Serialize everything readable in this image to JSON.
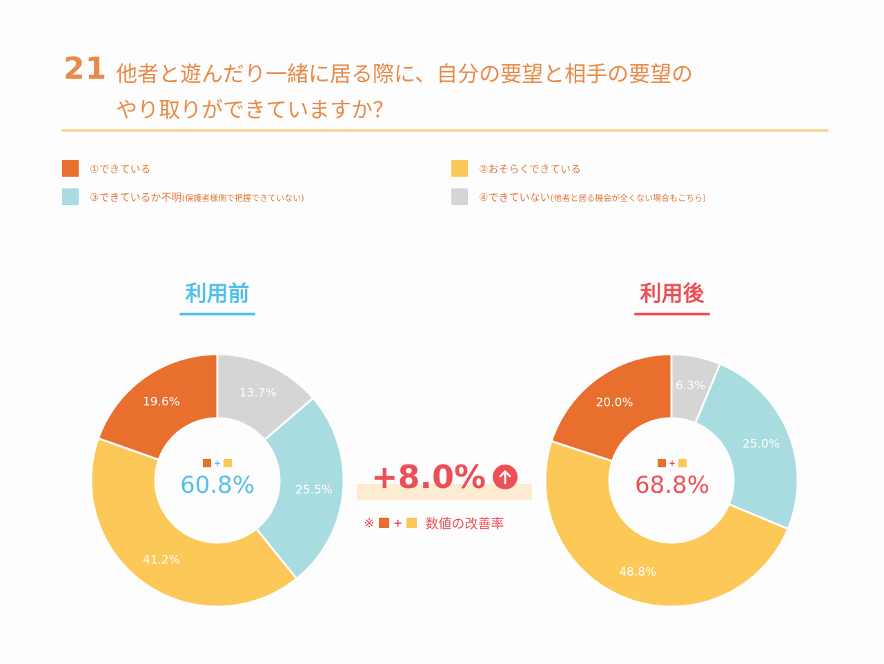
{
  "question": {
    "number": "21",
    "line1": "他者と遊んだり一緒に居る際に、自分の要望と相手の要望の",
    "line2": "やり取りができていますか？"
  },
  "legend": [
    {
      "label": "①できている",
      "note": "",
      "color": "#e96f2e"
    },
    {
      "label": "②おそらくできている",
      "note": "",
      "color": "#fcc857"
    },
    {
      "label": "③できているか不明",
      "note": "(保護者様側で把握できていない)",
      "color": "#a8dce0"
    },
    {
      "label": "④できていない",
      "note": "(他者と居る機会が全くない場合もこちら)",
      "color": "#d5d5d5"
    }
  ],
  "panels": {
    "before": {
      "title": "利用前",
      "color": "#52c0ea",
      "plus": "+",
      "center": "60.8%"
    },
    "after": {
      "title": "利用後",
      "color": "#ee4f56",
      "plus": "+",
      "center": "68.8%"
    }
  },
  "improvement": {
    "value": "+8.0%",
    "mark": "※",
    "plus": "+",
    "text": "数値の改善率"
  },
  "chart_data": [
    {
      "type": "pie",
      "title": "利用前",
      "categories": [
        "①できている",
        "②おそらくできている",
        "③できているか不明",
        "④できていない"
      ],
      "values": [
        19.6,
        41.2,
        25.5,
        13.7
      ],
      "labels": [
        "19.6%",
        "41.2%",
        "25.5%",
        "13.7%"
      ],
      "colors": [
        "#e96f2e",
        "#fcc857",
        "#a8dce0",
        "#d5d5d5"
      ]
    },
    {
      "type": "pie",
      "title": "利用後",
      "categories": [
        "①できている",
        "②おそらくできている",
        "③できているか不明",
        "④できていない"
      ],
      "values": [
        20.0,
        48.8,
        25.0,
        6.3
      ],
      "labels": [
        "20.0%",
        "48.8%",
        "25.0%",
        "6.3%"
      ],
      "colors": [
        "#e96f2e",
        "#fcc857",
        "#a8dce0",
        "#d5d5d5"
      ]
    }
  ]
}
